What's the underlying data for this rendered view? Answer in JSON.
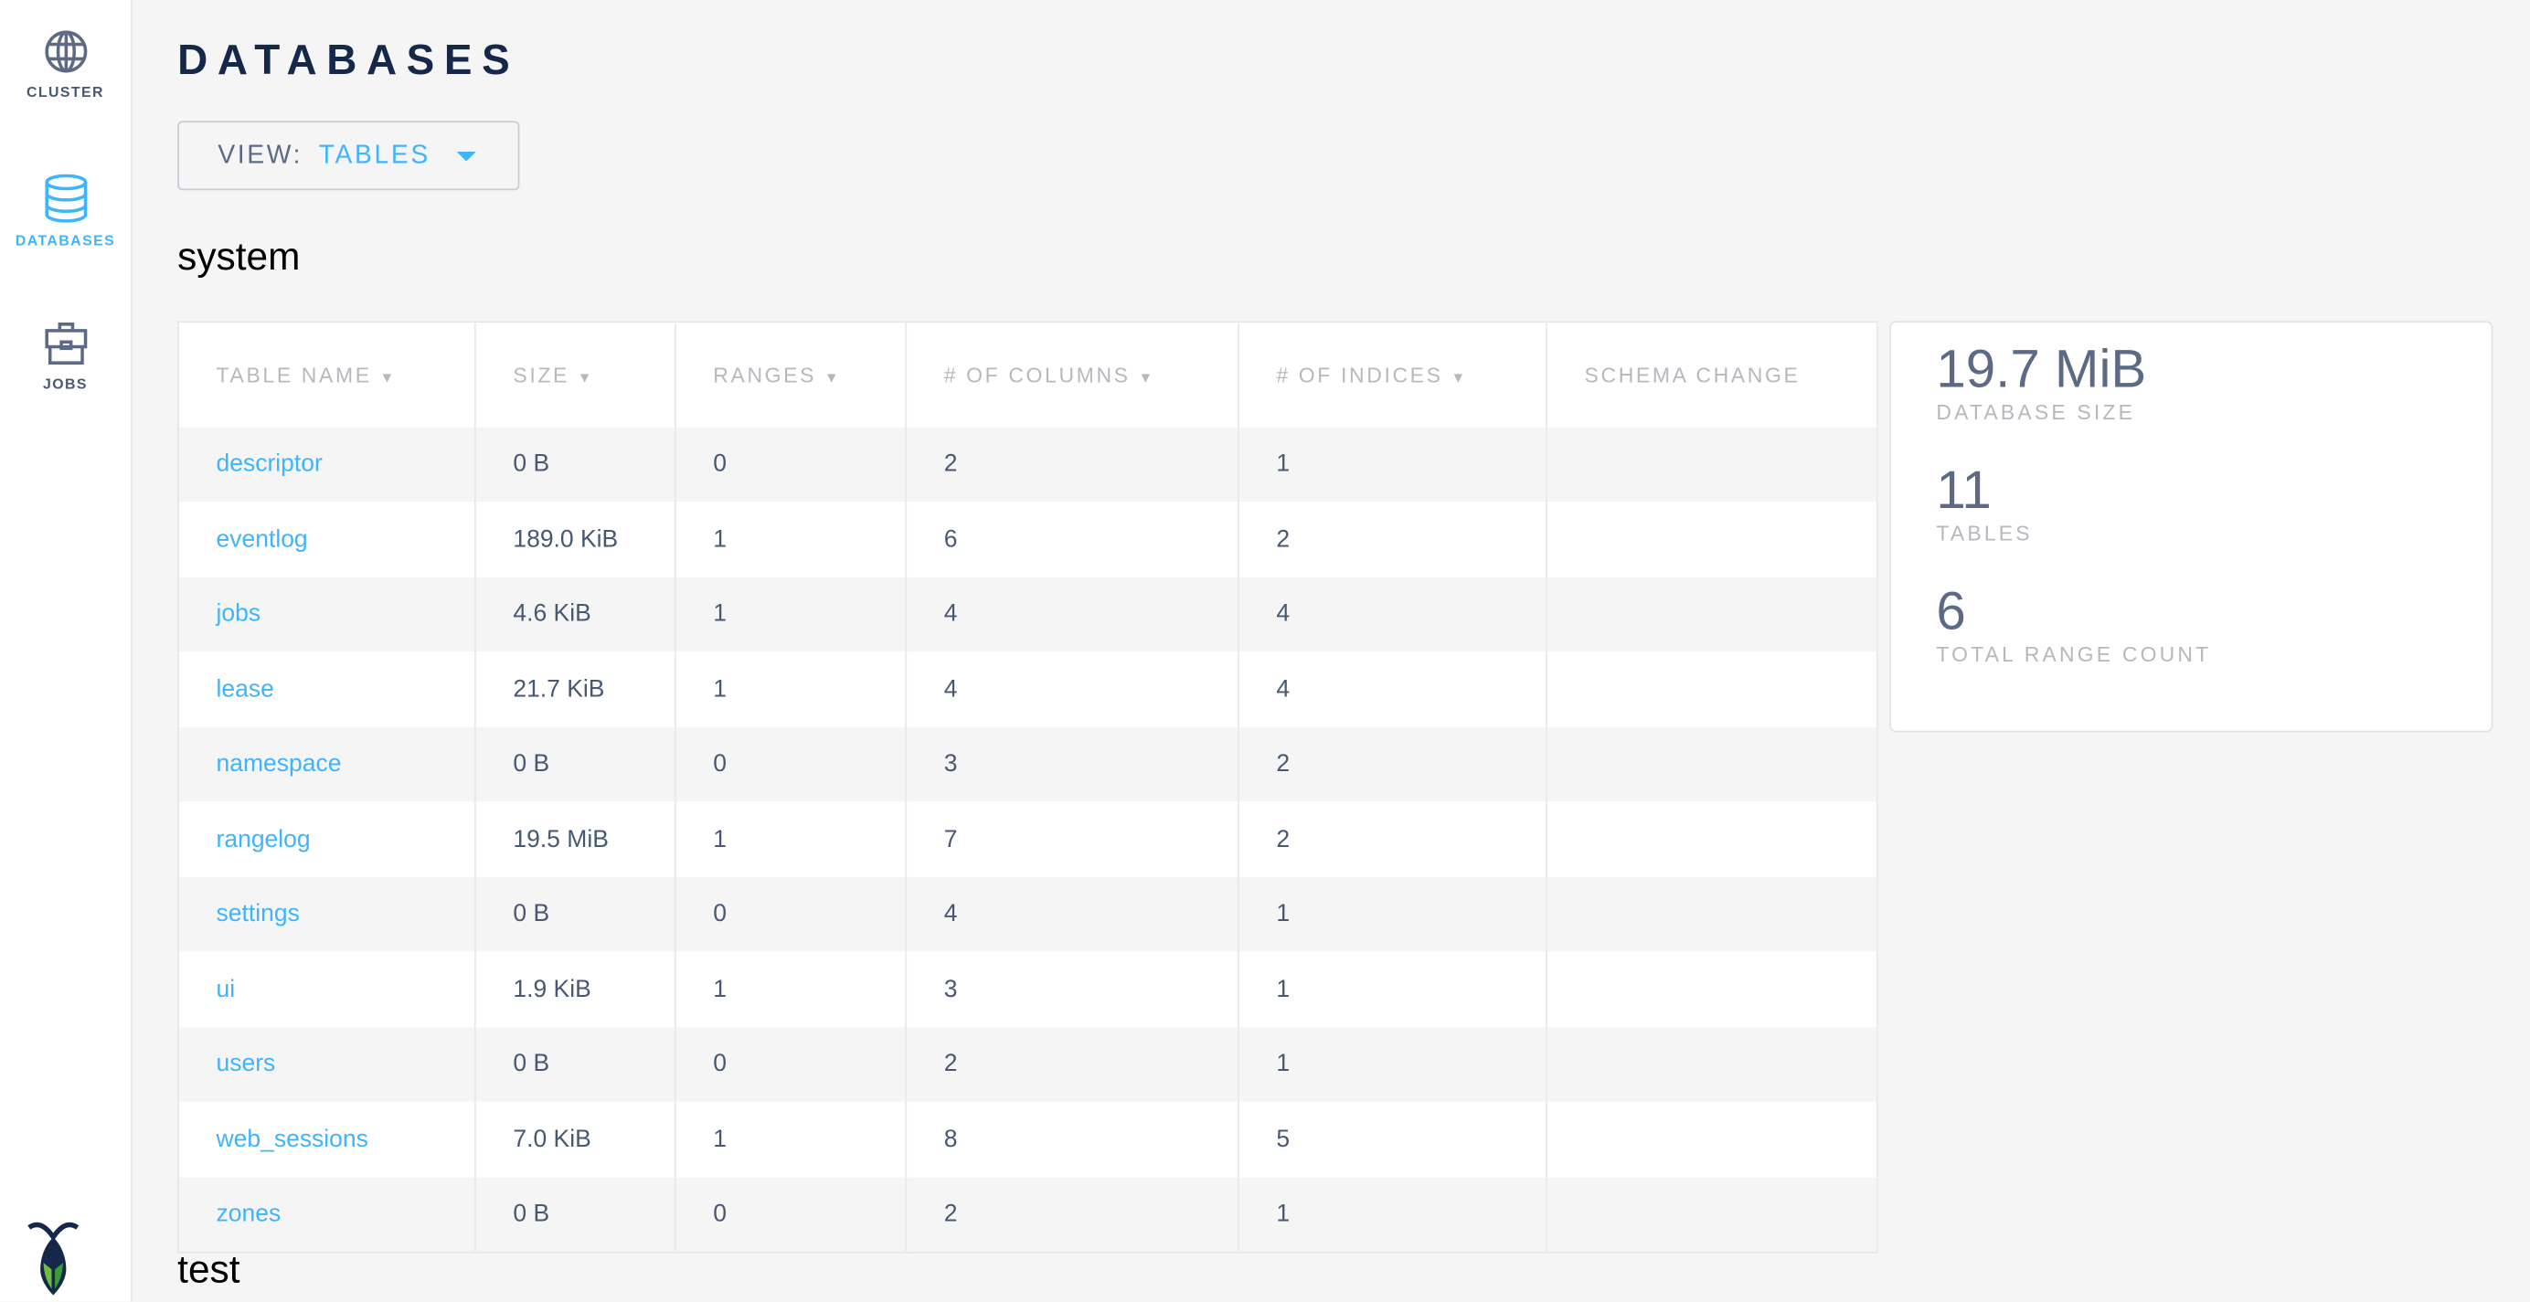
{
  "sidebar": {
    "items": [
      {
        "label": "CLUSTER",
        "icon": "globe-icon",
        "active": false
      },
      {
        "label": "DATABASES",
        "icon": "database-icon",
        "active": true
      },
      {
        "label": "JOBS",
        "icon": "briefcase-icon",
        "active": false
      }
    ],
    "logo": "cockroach-logo"
  },
  "page": {
    "title": "DATABASES"
  },
  "view": {
    "label": "VIEW:",
    "value": "TABLES"
  },
  "databases": [
    {
      "name": "system",
      "columns": [
        "TABLE NAME",
        "SIZE",
        "RANGES",
        "# OF COLUMNS",
        "# OF INDICES",
        "SCHEMA CHANGE"
      ],
      "rows": [
        [
          "descriptor",
          "0 B",
          "0",
          "2",
          "1",
          ""
        ],
        [
          "eventlog",
          "189.0 KiB",
          "1",
          "6",
          "2",
          ""
        ],
        [
          "jobs",
          "4.6 KiB",
          "1",
          "4",
          "4",
          ""
        ],
        [
          "lease",
          "21.7 KiB",
          "1",
          "4",
          "4",
          ""
        ],
        [
          "namespace",
          "0 B",
          "0",
          "3",
          "2",
          ""
        ],
        [
          "rangelog",
          "19.5 MiB",
          "1",
          "7",
          "2",
          ""
        ],
        [
          "settings",
          "0 B",
          "0",
          "4",
          "1",
          ""
        ],
        [
          "ui",
          "1.9 KiB",
          "1",
          "3",
          "1",
          ""
        ],
        [
          "users",
          "0 B",
          "0",
          "2",
          "1",
          ""
        ],
        [
          "web_sessions",
          "7.0 KiB",
          "1",
          "8",
          "5",
          ""
        ],
        [
          "zones",
          "0 B",
          "0",
          "2",
          "1",
          ""
        ]
      ],
      "summary": [
        {
          "value": "19.7 MiB",
          "label": "DATABASE SIZE"
        },
        {
          "value": "11",
          "label": "TABLES"
        },
        {
          "value": "6",
          "label": "TOTAL RANGE COUNT"
        }
      ]
    },
    {
      "name": "test"
    }
  ],
  "colors": {
    "accent": "#3fb4fc",
    "title": "#152849",
    "text": "#475872",
    "muted": "#b5b8bd"
  }
}
